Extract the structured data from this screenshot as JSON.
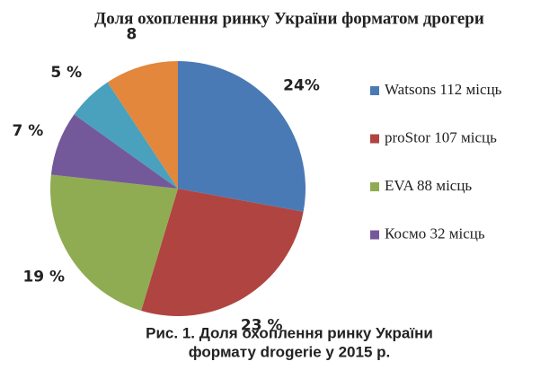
{
  "chart_data": {
    "type": "pie",
    "title": "Доля охоплення ринку України форматом дрогери",
    "categories": [
      "Watsons 112 місць",
      "proStor 107 місць",
      "EVA 88 місць",
      "Космо 32 місць",
      null,
      null
    ],
    "values": [
      24,
      23,
      19,
      7,
      5,
      8
    ],
    "value_labels": [
      "24%",
      "23 %",
      "19 %",
      "7 %",
      "5 %",
      "8"
    ],
    "colors": [
      "#4a7ab5",
      "#b04440",
      "#8fac52",
      "#74599a",
      "#4aa1bd",
      "#e2873b"
    ],
    "legend": "right",
    "caption": [
      "Рис. 1. Доля охоплення ринку України",
      "формату drogerie у 2015 р."
    ]
  }
}
